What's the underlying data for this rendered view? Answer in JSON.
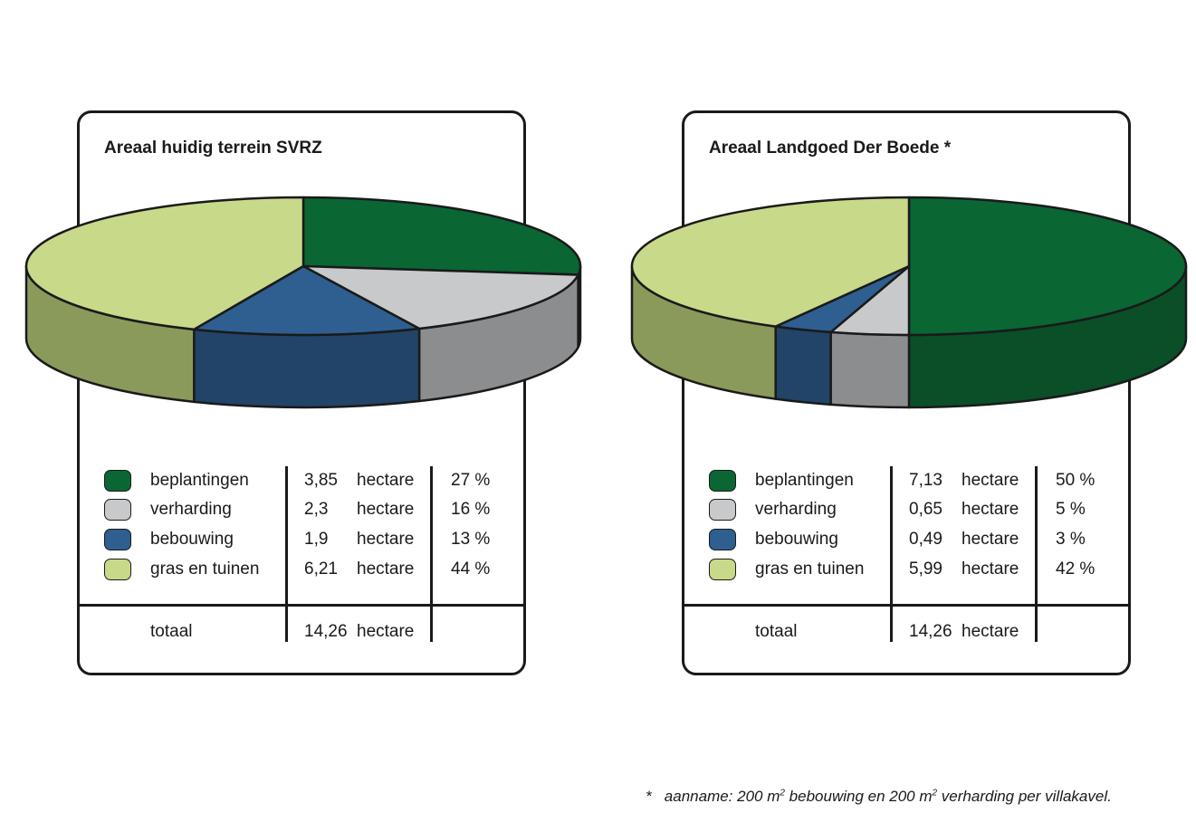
{
  "chart_data": [
    {
      "type": "pie",
      "title": "Areaal huidig terrein SVRZ",
      "categories": [
        "beplantingen",
        "verharding",
        "bebouwing",
        "gras en tuinen"
      ],
      "values": [
        3.85,
        2.3,
        1.9,
        6.21
      ],
      "unit": "hectare",
      "percentages": [
        "27 %",
        "16 %",
        "13 %",
        "44 %"
      ],
      "value_labels": [
        "3,85",
        "2,3",
        "1,9",
        "6,21"
      ],
      "total_label": "totaal",
      "total_value": "14,26",
      "colors": {
        "top": [
          "#0a6633",
          "#c8c9cb",
          "#2e5f90",
          "#c8d98a"
        ],
        "side": [
          "#0a4f27",
          "#8c8d8f",
          "#214468",
          "#8a9a5b"
        ]
      }
    },
    {
      "type": "pie",
      "title": "Areaal Landgoed Der Boede *",
      "categories": [
        "beplantingen",
        "verharding",
        "bebouwing",
        "gras en tuinen"
      ],
      "values": [
        7.13,
        0.65,
        0.49,
        5.99
      ],
      "unit": "hectare",
      "percentages": [
        "50 %",
        "5 %",
        "3 %",
        "42 %"
      ],
      "value_labels": [
        "7,13",
        "0,65",
        "0,49",
        "5,99"
      ],
      "total_label": "totaal",
      "total_value": "14,26",
      "colors": {
        "top": [
          "#0a6633",
          "#c8c9cb",
          "#2e5f90",
          "#c8d98a"
        ],
        "side": [
          "#0a4f27",
          "#8c8d8f",
          "#214468",
          "#8a9a5b"
        ]
      }
    }
  ],
  "footnote": {
    "star": "*",
    "text_1": "aanname: 200 m",
    "sup_1": "2",
    "text_2": " bebouwing en 200 m",
    "sup_2": "2",
    "text_3": " verharding per villakavel."
  }
}
